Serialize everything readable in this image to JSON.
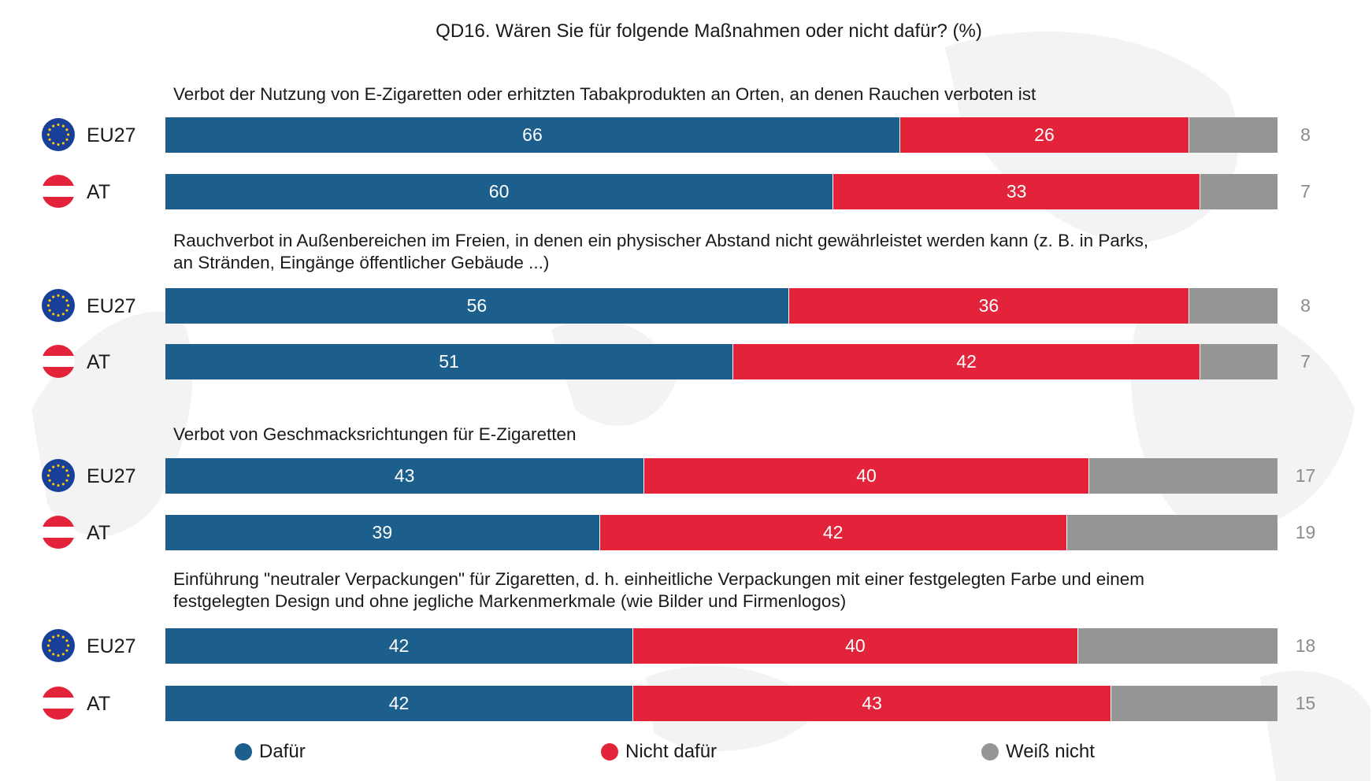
{
  "chart_data": {
    "type": "bar",
    "orientation": "horizontal",
    "stacked": true,
    "title": "QD16. Wären Sie für folgende Maßnahmen oder nicht dafür? (%)",
    "xlim": [
      0,
      100
    ],
    "legend_position": "bottom",
    "legend": [
      {
        "key": "dafuer",
        "label": "Dafür",
        "color": "#1c5f8c"
      },
      {
        "key": "nicht",
        "label": "Nicht dafür",
        "color": "#e2233a"
      },
      {
        "key": "weiss",
        "label": "Weiß nicht",
        "color": "#959595"
      }
    ],
    "groups": [
      {
        "question": "Verbot der Nutzung von E-Zigaretten oder erhitzten Tabakprodukten an Orten, an denen Rauchen verboten ist",
        "rows": [
          {
            "label": "EU27",
            "flag": "eu-flag-icon",
            "dafuer": 66,
            "nicht": 26,
            "weiss": 8
          },
          {
            "label": "AT",
            "flag": "austria-flag-icon",
            "dafuer": 60,
            "nicht": 33,
            "weiss": 7
          }
        ]
      },
      {
        "question": "Rauchverbot in Außenbereichen im Freien, in denen ein physischer Abstand nicht gewährleistet werden kann (z. B. in Parks, an Stränden, Eingänge öffentlicher Gebäude ...)",
        "rows": [
          {
            "label": "EU27",
            "flag": "eu-flag-icon",
            "dafuer": 56,
            "nicht": 36,
            "weiss": 8
          },
          {
            "label": "AT",
            "flag": "austria-flag-icon",
            "dafuer": 51,
            "nicht": 42,
            "weiss": 7
          }
        ]
      },
      {
        "question": "Verbot von Geschmacksrichtungen für E-Zigaretten",
        "rows": [
          {
            "label": "EU27",
            "flag": "eu-flag-icon",
            "dafuer": 43,
            "nicht": 40,
            "weiss": 17
          },
          {
            "label": "AT",
            "flag": "austria-flag-icon",
            "dafuer": 39,
            "nicht": 42,
            "weiss": 19
          }
        ]
      },
      {
        "question": "Einführung \"neutraler Verpackungen\" für Zigaretten, d. h. einheitliche Verpackungen mit einer festgelegten Farbe und einem festgelegten Design und ohne jegliche Markenmerkmale (wie Bilder und Firmenlogos)",
        "rows": [
          {
            "label": "EU27",
            "flag": "eu-flag-icon",
            "dafuer": 42,
            "nicht": 40,
            "weiss": 18
          },
          {
            "label": "AT",
            "flag": "austria-flag-icon",
            "dafuer": 42,
            "nicht": 43,
            "weiss": 15
          }
        ]
      }
    ]
  },
  "colors": {
    "dafuer": "#1c5f8c",
    "nicht": "#e2233a",
    "weiss": "#959595",
    "dk_text": "#8c8c8c",
    "eu_blue": "#1a3f99",
    "eu_star": "#ffcc00",
    "at_red": "#e2233a"
  }
}
